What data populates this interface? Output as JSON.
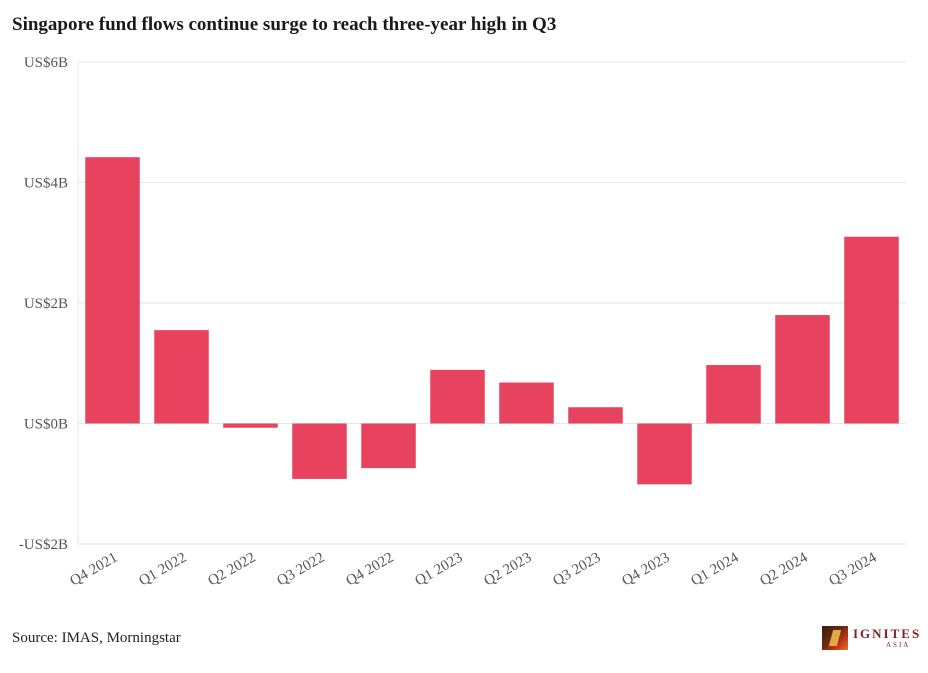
{
  "source": "Source: IMAS, Morningstar",
  "logo": {
    "word": "IGNITES",
    "sub": "ASIA"
  },
  "colors": {
    "bar": "#e8435e",
    "grid": "#e6e6e6",
    "text": "#555555"
  },
  "chart_data": {
    "type": "bar",
    "title": "Singapore fund flows continue surge to reach three-year high in Q3",
    "xlabel": "",
    "ylabel": "",
    "categories": [
      "Q4 2021",
      "Q1 2022",
      "Q2 2022",
      "Q3 2022",
      "Q4 2022",
      "Q1 2023",
      "Q2 2023",
      "Q3 2023",
      "Q4 2023",
      "Q1 2024",
      "Q2 2024",
      "Q3 2024"
    ],
    "values": [
      4.42,
      1.55,
      -0.07,
      -0.92,
      -0.74,
      0.89,
      0.68,
      0.27,
      -1.01,
      0.97,
      1.8,
      3.1
    ],
    "ylim": [
      -2,
      6
    ],
    "yticks": [
      -2,
      0,
      2,
      4,
      6
    ],
    "ytick_labels": [
      "-US$2B",
      "US$0B",
      "US$2B",
      "US$4B",
      "US$6B"
    ],
    "grid": true,
    "legend": "none"
  }
}
